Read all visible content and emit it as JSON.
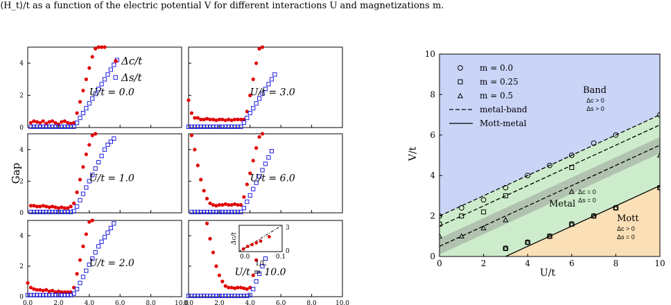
{
  "caption": "⟨H_t⟩/t as a function of the electric potential V for different interactions U and magnetizations m.",
  "left_figure": {
    "ylabel": "Gap",
    "legend": [
      "Δc/t",
      "Δs/t"
    ],
    "inset": {
      "ylabel": "Δc/t",
      "xlabel": "1/L",
      "x_ticks": [
        "0.0",
        "0.1"
      ],
      "y_ticks": [
        "0",
        "3"
      ]
    }
  },
  "right_figure": {
    "xlabel": "U/t",
    "ylabel": "V/t",
    "legend": [
      "m = 0.0",
      "m = 0.25",
      "m = 0.5",
      "metal-band",
      "Mott-metal"
    ],
    "region_labels": {
      "band": "Band",
      "band_c": "Δc > 0",
      "band_s": "Δs > 0",
      "metal": "Metal",
      "metal_c": "Δc = 0",
      "metal_s": "Δs = 0",
      "mott": "Mott",
      "mott_c": "Δc > 0",
      "mott_s": "Δs = 0"
    },
    "colors": {
      "band": "#c9d4f7",
      "metal": "#cdeccb",
      "mott": "#fbe0b7"
    }
  },
  "chart_data": [
    {
      "type": "scatter",
      "panels": [
        {
          "label": "U/t = 0.0",
          "series": [
            {
              "name": "Δc/t",
              "x": [
                0.2,
                0.4,
                0.6,
                0.8,
                1.0,
                1.2,
                1.4,
                1.6,
                1.8,
                2.0,
                2.2,
                2.4,
                2.6,
                2.8,
                3.0,
                3.2,
                3.4,
                3.6,
                3.8,
                4.0,
                4.2,
                4.4,
                4.6,
                4.8,
                5.0
              ],
              "y": [
                0.3,
                0.4,
                0.35,
                0.3,
                0.4,
                0.25,
                0.35,
                0.4,
                0.3,
                0.2,
                0.35,
                0.4,
                0.3,
                0.25,
                0.3,
                0.9,
                1.6,
                2.3,
                3.0,
                3.7,
                4.4,
                4.9,
                5.0,
                5.0,
                5.0
              ]
            },
            {
              "name": "Δs/t",
              "x": [
                0.2,
                0.4,
                0.6,
                0.8,
                1.0,
                1.2,
                1.4,
                1.6,
                1.8,
                2.0,
                2.2,
                2.4,
                2.6,
                2.8,
                3.0,
                3.2,
                3.4,
                3.6,
                3.8,
                4.0,
                4.2,
                4.4,
                4.6,
                4.8,
                5.0,
                5.2,
                5.4,
                5.6,
                5.8
              ],
              "y": [
                0.05,
                0.05,
                0.05,
                0.05,
                0.05,
                0.05,
                0.05,
                0.05,
                0.05,
                0.05,
                0.05,
                0.05,
                0.05,
                0.05,
                0.05,
                0.3,
                0.6,
                0.9,
                1.2,
                1.5,
                1.8,
                2.1,
                2.4,
                2.7,
                3.0,
                3.3,
                3.6,
                3.9,
                4.2
              ]
            }
          ]
        },
        {
          "label": "U/t = 3.0",
          "series": [
            {
              "name": "Δc/t",
              "x": [
                0.0,
                0.2,
                0.4,
                0.6,
                0.8,
                1.0,
                1.2,
                1.4,
                1.6,
                1.8,
                2.0,
                2.2,
                2.4,
                2.6,
                2.8,
                3.0,
                3.2,
                3.4,
                3.6,
                3.8,
                4.0,
                4.2,
                4.4,
                4.6,
                4.8
              ],
              "y": [
                1.7,
                0.9,
                0.6,
                0.6,
                0.5,
                0.5,
                0.55,
                0.5,
                0.5,
                0.45,
                0.5,
                0.5,
                0.45,
                0.5,
                0.45,
                0.5,
                0.5,
                0.5,
                0.5,
                1.0,
                2.0,
                3.0,
                4.0,
                4.9,
                5.0
              ]
            },
            {
              "name": "Δs/t",
              "x": [
                0.0,
                0.2,
                0.4,
                0.6,
                0.8,
                1.0,
                1.2,
                1.4,
                1.6,
                1.8,
                2.0,
                2.2,
                2.4,
                2.6,
                2.8,
                3.0,
                3.2,
                3.4,
                3.6,
                3.8,
                4.0,
                4.2,
                4.4,
                4.6,
                4.8,
                5.0,
                5.2,
                5.4,
                5.6
              ],
              "y": [
                0.05,
                0.05,
                0.05,
                0.05,
                0.05,
                0.05,
                0.05,
                0.05,
                0.05,
                0.05,
                0.05,
                0.05,
                0.05,
                0.05,
                0.05,
                0.05,
                0.05,
                0.05,
                0.3,
                0.6,
                0.9,
                1.2,
                1.5,
                1.8,
                2.1,
                2.4,
                2.7,
                3.0,
                3.3
              ]
            }
          ]
        },
        {
          "label": "U/t = 1.0",
          "series": [
            {
              "name": "Δc/t",
              "x": [
                0.2,
                0.4,
                0.6,
                0.8,
                1.0,
                1.2,
                1.4,
                1.6,
                1.8,
                2.0,
                2.2,
                2.4,
                2.6,
                2.8,
                3.0,
                3.2,
                3.4,
                3.6,
                3.8,
                4.0,
                4.2,
                4.4
              ],
              "y": [
                0.45,
                0.45,
                0.4,
                0.4,
                0.45,
                0.4,
                0.35,
                0.4,
                0.35,
                0.3,
                0.35,
                0.3,
                0.3,
                0.4,
                0.6,
                1.3,
                2.1,
                2.9,
                3.7,
                4.3,
                4.9,
                5.0
              ]
            },
            {
              "name": "Δs/t",
              "x": [
                0.2,
                0.4,
                0.6,
                0.8,
                1.0,
                1.2,
                1.4,
                1.6,
                1.8,
                2.0,
                2.2,
                2.4,
                2.6,
                2.8,
                3.0,
                3.2,
                3.4,
                3.6,
                3.8,
                4.0,
                4.2,
                4.4,
                4.6,
                4.8,
                5.0,
                5.2,
                5.4,
                5.6
              ],
              "y": [
                0.05,
                0.05,
                0.05,
                0.05,
                0.05,
                0.05,
                0.05,
                0.05,
                0.05,
                0.05,
                0.05,
                0.05,
                0.05,
                0.05,
                0.1,
                0.4,
                0.8,
                1.2,
                1.6,
                2.0,
                2.4,
                2.8,
                3.2,
                3.6,
                4.0,
                4.3,
                4.5,
                4.7
              ]
            }
          ]
        },
        {
          "label": "U/t = 6.0",
          "series": [
            {
              "name": "Δc/t",
              "x": [
                0.2,
                0.4,
                0.6,
                0.8,
                1.0,
                1.2,
                1.4,
                1.6,
                1.8,
                2.0,
                2.2,
                2.4,
                2.6,
                2.8,
                3.0,
                3.2,
                3.4,
                3.6,
                3.8,
                4.0,
                4.2,
                4.4,
                4.6,
                4.8
              ],
              "y": [
                4.9,
                4.0,
                3.0,
                2.1,
                1.4,
                0.9,
                0.6,
                0.5,
                0.45,
                0.5,
                0.5,
                0.55,
                0.5,
                0.5,
                0.55,
                0.5,
                0.5,
                1.0,
                1.8,
                2.5,
                3.3,
                4.1,
                4.8,
                5.0
              ]
            },
            {
              "name": "Δs/t",
              "x": [
                0.2,
                0.4,
                0.6,
                0.8,
                1.0,
                1.2,
                1.4,
                1.6,
                1.8,
                2.0,
                2.2,
                2.4,
                2.6,
                2.8,
                3.0,
                3.2,
                3.4,
                3.6,
                3.8,
                4.0,
                4.2,
                4.4,
                4.6,
                4.8,
                5.0,
                5.2,
                5.4
              ],
              "y": [
                0.05,
                0.05,
                0.05,
                0.05,
                0.05,
                0.05,
                0.05,
                0.05,
                0.05,
                0.05,
                0.05,
                0.05,
                0.05,
                0.05,
                0.05,
                0.05,
                0.05,
                0.3,
                0.7,
                1.1,
                1.5,
                1.9,
                2.3,
                2.7,
                3.1,
                3.5,
                3.9
              ]
            }
          ]
        },
        {
          "label": "U/t = 2.0",
          "series": [
            {
              "name": "Δc/t",
              "x": [
                0.0,
                0.2,
                0.4,
                0.6,
                0.8,
                1.0,
                1.2,
                1.4,
                1.6,
                1.8,
                2.0,
                2.2,
                2.4,
                2.6,
                2.8,
                3.0,
                3.2,
                3.4,
                3.6,
                3.8,
                4.0,
                4.2
              ],
              "y": [
                0.9,
                0.6,
                0.5,
                0.45,
                0.45,
                0.4,
                0.45,
                0.35,
                0.4,
                0.3,
                0.35,
                0.3,
                0.3,
                0.3,
                0.3,
                0.6,
                1.5,
                2.4,
                3.3,
                4.1,
                4.9,
                5.0
              ]
            },
            {
              "name": "Δs/t",
              "x": [
                0.0,
                0.2,
                0.4,
                0.6,
                0.8,
                1.0,
                1.2,
                1.4,
                1.6,
                1.8,
                2.0,
                2.2,
                2.4,
                2.6,
                2.8,
                3.0,
                3.2,
                3.4,
                3.6,
                3.8,
                4.0,
                4.2,
                4.4,
                4.6,
                4.8,
                5.0,
                5.2,
                5.4,
                5.6
              ],
              "y": [
                0.1,
                0.1,
                0.1,
                0.1,
                0.1,
                0.1,
                0.1,
                0.1,
                0.1,
                0.1,
                0.1,
                0.1,
                0.1,
                0.1,
                0.1,
                0.2,
                0.5,
                0.9,
                1.3,
                1.7,
                2.1,
                2.5,
                2.9,
                3.3,
                3.6,
                3.9,
                4.2,
                4.5,
                4.8
              ]
            }
          ]
        },
        {
          "label": "U/t = 10.0",
          "series": [
            {
              "name": "Δc/t",
              "x": [
                1.2,
                1.4,
                1.6,
                1.8,
                2.0,
                2.2,
                2.4,
                2.6,
                2.8,
                3.0,
                3.2,
                3.4,
                3.6,
                3.8,
                4.0,
                4.2,
                4.4,
                4.6,
                4.8
              ],
              "y": [
                4.8,
                3.8,
                2.9,
                2.0,
                1.4,
                1.0,
                0.7,
                0.6,
                0.6,
                0.55,
                0.6,
                0.6,
                0.55,
                0.5,
                0.6,
                1.4,
                2.4,
                3.4,
                4.4
              ]
            },
            {
              "name": "Δs/t",
              "x": [
                0.0,
                0.2,
                0.4,
                0.6,
                0.8,
                1.0,
                1.2,
                1.4,
                1.6,
                1.8,
                2.0,
                2.2,
                2.4,
                2.6,
                2.8,
                3.0,
                3.2,
                3.4,
                3.6,
                3.8,
                4.0,
                4.2,
                4.4,
                4.6,
                4.8,
                5.0,
                5.2,
                5.4
              ],
              "y": [
                0.05,
                0.05,
                0.05,
                0.05,
                0.05,
                0.05,
                0.05,
                0.05,
                0.05,
                0.05,
                0.05,
                0.05,
                0.05,
                0.05,
                0.05,
                0.05,
                0.05,
                0.05,
                0.05,
                0.05,
                0.1,
                0.5,
                1.0,
                1.5,
                2.0,
                2.5,
                3.1,
                3.8
              ]
            }
          ]
        }
      ],
      "inset": {
        "x": [
          0.01,
          0.02,
          0.03,
          0.04,
          0.05,
          0.07
        ],
        "y": [
          0.3,
          0.6,
          0.8,
          1.0,
          1.2,
          1.7
        ],
        "fit": [
          [
            0.0,
            0.0
          ],
          [
            0.1,
            3.0
          ]
        ]
      },
      "x_ticks": [
        "0.0",
        "2.0",
        "4.0",
        "6.0",
        "8.0",
        "10.0"
      ],
      "y_ticks": [
        "0",
        "2",
        "4"
      ],
      "xlim": [
        0,
        10
      ],
      "ylim": [
        0,
        5
      ]
    },
    {
      "type": "scatter",
      "xlim": [
        0,
        10
      ],
      "ylim": [
        0,
        10
      ],
      "x_ticks": [
        0,
        2,
        4,
        6,
        8,
        10
      ],
      "y_ticks": [
        0,
        2,
        4,
        6,
        8,
        10
      ],
      "series": [
        {
          "name": "m = 0.0",
          "marker": "circle",
          "x": [
            0,
            1,
            2,
            3,
            4,
            5,
            6,
            7,
            8,
            10,
            3,
            4,
            5,
            6,
            7,
            8,
            10
          ],
          "y": [
            2.0,
            2.4,
            2.8,
            3.4,
            4.0,
            4.5,
            5.0,
            5.6,
            6.0,
            7.0,
            0.4,
            0.7,
            1.0,
            1.6,
            2.0,
            2.4,
            3.4
          ]
        },
        {
          "name": "m = 0.25",
          "marker": "square",
          "x": [
            0,
            1,
            2,
            3,
            6,
            3,
            4,
            5,
            6,
            7,
            8,
            10
          ],
          "y": [
            1.6,
            2.0,
            2.2,
            3.0,
            4.4,
            0.4,
            0.7,
            1.0,
            1.6,
            2.0,
            2.4,
            3.4
          ]
        },
        {
          "name": "m = 0.5",
          "marker": "triangle",
          "x": [
            0,
            1,
            2,
            3,
            6,
            10,
            3,
            4,
            5,
            6,
            7,
            8,
            10
          ],
          "y": [
            1.0,
            1.0,
            1.4,
            1.8,
            3.2,
            5.0,
            0.4,
            0.7,
            1.0,
            1.6,
            2.0,
            2.4,
            3.4
          ]
        }
      ],
      "lines": [
        {
          "name": "metal-band",
          "style": "dashed",
          "points": [
            [
              0,
              2.0
            ],
            [
              10,
              7.0
            ]
          ]
        },
        {
          "name": "metal-band",
          "style": "dashed",
          "points": [
            [
              0,
              1.5
            ],
            [
              10,
              6.5
            ]
          ]
        },
        {
          "name": "metal-band",
          "style": "dashed",
          "points": [
            [
              0,
              0.5
            ],
            [
              10,
              5.5
            ]
          ]
        },
        {
          "name": "Mott-metal",
          "style": "solid",
          "points": [
            [
              3,
              0.0
            ],
            [
              10,
              3.5
            ]
          ]
        }
      ]
    }
  ]
}
